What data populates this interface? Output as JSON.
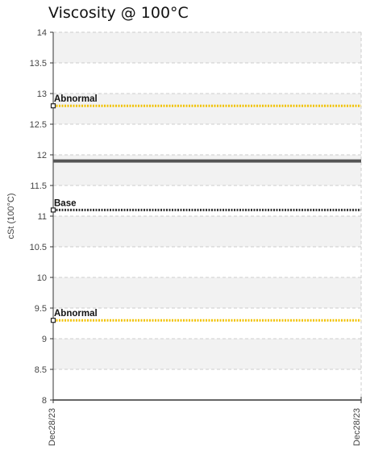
{
  "chart_data": {
    "type": "line",
    "title": "Viscosity @ 100°C",
    "ylabel": "cSt (100°C)",
    "xlabel": "",
    "ylim": [
      8,
      14
    ],
    "yticks": [
      "8",
      "8.5",
      "9",
      "9.5",
      "10",
      "10.5",
      "11",
      "11.5",
      "12",
      "12.5",
      "13",
      "13.5",
      "14"
    ],
    "xticks": [
      "Dec28/23",
      "Dec28/23"
    ],
    "grid": true,
    "series": [
      {
        "value": 11.9,
        "color": "#555555",
        "style": "solid"
      }
    ],
    "reference_lines": [
      {
        "name": "Abnormal",
        "value": 12.8,
        "color": "#f2c200",
        "style": "dotted"
      },
      {
        "name": "Base",
        "value": 11.1,
        "color": "#333333",
        "style": "dotted"
      },
      {
        "name": "Abnormal",
        "value": 9.3,
        "color": "#f2c200",
        "style": "dotted"
      }
    ],
    "colors": {
      "band_light": "#f2f2f2",
      "band_white": "#ffffff",
      "grid": "#cccccc",
      "axis": "#333333"
    }
  }
}
